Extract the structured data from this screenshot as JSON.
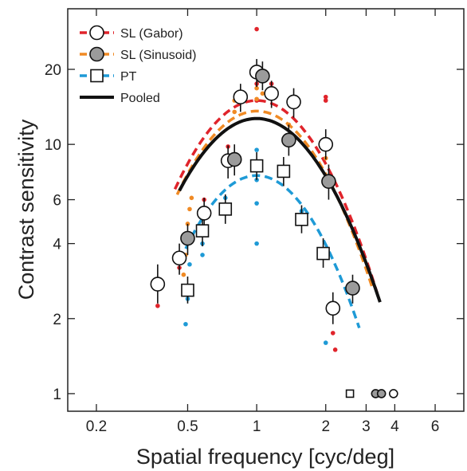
{
  "chart_data": {
    "type": "scatter",
    "xlabel": "Spatial frequency [cyc/deg]",
    "ylabel": "Contrast sensitivity",
    "x_scale": "log",
    "y_scale": "log",
    "xlim": [
      0.15,
      8
    ],
    "ylim": [
      0.85,
      35
    ],
    "x_ticks": [
      0.2,
      0.5,
      1,
      2,
      3,
      4,
      6
    ],
    "x_tick_labels": [
      "0.2",
      "0.5",
      "1",
      "2",
      "3",
      "4",
      "6"
    ],
    "y_ticks": [
      1,
      2,
      4,
      6,
      10,
      20
    ],
    "y_tick_labels": [
      "1",
      "2",
      "4",
      "6",
      "10",
      "20"
    ],
    "grid": false,
    "legend_position": "top-left",
    "legend": [
      {
        "label": "SL (Gabor)",
        "marker": "circle-open",
        "line": "dashed",
        "color": "#e0242b"
      },
      {
        "label": "SL (Sinusoid)",
        "marker": "circle-gray",
        "line": "dashed",
        "color": "#f08a24"
      },
      {
        "label": "PT",
        "marker": "square-open",
        "line": "dashed",
        "color": "#1e9ad6"
      },
      {
        "label": "Pooled",
        "marker": "none",
        "line": "solid",
        "color": "#111111"
      }
    ],
    "series": [
      {
        "name": "SL (Gabor)",
        "color": "#e0242b",
        "marker": "circle-open",
        "points": [
          {
            "x": 0.37,
            "y": 2.75,
            "lo": 2.3,
            "hi": 3.3
          },
          {
            "x": 0.46,
            "y": 3.5,
            "lo": 3.0,
            "hi": 4.0
          },
          {
            "x": 0.59,
            "y": 5.3,
            "lo": 4.5,
            "hi": 6.1
          },
          {
            "x": 0.75,
            "y": 8.6,
            "lo": 7.3,
            "hi": 9.9
          },
          {
            "x": 0.85,
            "y": 15.5,
            "lo": 13.5,
            "hi": 17.5
          },
          {
            "x": 1.0,
            "y": 19.5,
            "lo": 17.0,
            "hi": 22.0
          },
          {
            "x": 1.16,
            "y": 16.0,
            "lo": 14.0,
            "hi": 18.0
          },
          {
            "x": 1.45,
            "y": 14.8,
            "lo": 12.8,
            "hi": 16.8
          },
          {
            "x": 2.0,
            "y": 10.0,
            "lo": 8.7,
            "hi": 11.5
          },
          {
            "x": 2.15,
            "y": 2.2,
            "lo": 1.9,
            "hi": 2.55
          },
          {
            "x": 3.95,
            "y": 1.0
          }
        ],
        "raw": [
          {
            "x": 0.37,
            "y": 2.25
          },
          {
            "x": 0.46,
            "y": 3.2
          },
          {
            "x": 0.59,
            "y": 6.0
          },
          {
            "x": 0.75,
            "y": 9.8
          },
          {
            "x": 1.0,
            "y": 29.0
          },
          {
            "x": 1.0,
            "y": 15.0
          },
          {
            "x": 1.0,
            "y": 17.5
          },
          {
            "x": 1.16,
            "y": 17.5
          },
          {
            "x": 2.0,
            "y": 15.5
          },
          {
            "x": 2.0,
            "y": 15.0
          },
          {
            "x": 2.15,
            "y": 1.75
          },
          {
            "x": 2.2,
            "y": 1.5
          }
        ],
        "fit_peak_x": 1.0,
        "fit_peak_y": 15.0,
        "fit_bandwidth": 0.63,
        "fit_x_range": [
          0.44,
          3.35
        ]
      },
      {
        "name": "SL (Sinusoid)",
        "color": "#f08a24",
        "marker": "circle-gray",
        "points": [
          {
            "x": 0.5,
            "y": 4.2,
            "lo": 3.6,
            "hi": 4.8
          },
          {
            "x": 0.8,
            "y": 8.7,
            "lo": 7.5,
            "hi": 10.0
          },
          {
            "x": 1.06,
            "y": 18.8,
            "lo": 16.5,
            "hi": 21.5
          },
          {
            "x": 1.38,
            "y": 10.4,
            "lo": 9.0,
            "hi": 12.0
          },
          {
            "x": 2.06,
            "y": 7.1,
            "lo": 6.0,
            "hi": 8.3
          },
          {
            "x": 2.62,
            "y": 2.65,
            "lo": 2.3,
            "hi": 3.0
          },
          {
            "x": 3.3,
            "y": 1.0
          },
          {
            "x": 3.5,
            "y": 1.0
          }
        ],
        "raw": [
          {
            "x": 0.48,
            "y": 3.0
          },
          {
            "x": 0.49,
            "y": 3.6
          },
          {
            "x": 0.5,
            "y": 4.8
          },
          {
            "x": 0.51,
            "y": 5.5
          },
          {
            "x": 0.52,
            "y": 6.1
          },
          {
            "x": 0.8,
            "y": 15.0
          },
          {
            "x": 0.8,
            "y": 13.5
          },
          {
            "x": 1.0,
            "y": 16.8
          },
          {
            "x": 1.0,
            "y": 15.2
          },
          {
            "x": 1.06,
            "y": 16.0
          },
          {
            "x": 1.38,
            "y": 12.0
          },
          {
            "x": 2.0,
            "y": 8.8
          }
        ],
        "fit_peak_x": 1.0,
        "fit_peak_y": 13.6,
        "fit_bandwidth": 0.62,
        "fit_x_range": [
          0.45,
          3.2
        ]
      },
      {
        "name": "PT",
        "color": "#1e9ad6",
        "marker": "square-open",
        "points": [
          {
            "x": 0.5,
            "y": 2.6,
            "lo": 2.3,
            "hi": 2.95
          },
          {
            "x": 0.58,
            "y": 4.5,
            "lo": 3.9,
            "hi": 5.1
          },
          {
            "x": 0.73,
            "y": 5.5,
            "lo": 4.8,
            "hi": 6.3
          },
          {
            "x": 1.0,
            "y": 8.2,
            "lo": 7.2,
            "hi": 9.3
          },
          {
            "x": 1.31,
            "y": 7.8,
            "lo": 6.8,
            "hi": 8.9
          },
          {
            "x": 1.57,
            "y": 5.0,
            "lo": 4.4,
            "hi": 5.7
          },
          {
            "x": 1.95,
            "y": 3.65,
            "lo": 3.2,
            "hi": 4.2
          },
          {
            "x": 2.55,
            "y": 1.0
          }
        ],
        "raw": [
          {
            "x": 0.49,
            "y": 1.9
          },
          {
            "x": 0.5,
            "y": 2.4
          },
          {
            "x": 0.51,
            "y": 3.3
          },
          {
            "x": 0.58,
            "y": 4.0
          },
          {
            "x": 0.58,
            "y": 3.6
          },
          {
            "x": 0.73,
            "y": 6.1
          },
          {
            "x": 1.0,
            "y": 4.0
          },
          {
            "x": 1.0,
            "y": 5.8
          },
          {
            "x": 1.0,
            "y": 7.2
          },
          {
            "x": 1.0,
            "y": 9.5
          },
          {
            "x": 1.57,
            "y": 5.4
          },
          {
            "x": 2.0,
            "y": 1.6
          }
        ],
        "fit_peak_x": 1.0,
        "fit_peak_y": 7.5,
        "fit_bandwidth": 0.52,
        "fit_x_range": [
          0.49,
          2.8
        ]
      },
      {
        "name": "Pooled",
        "color": "#111111",
        "marker": "none",
        "points": [],
        "raw": [],
        "fit_peak_x": 1.0,
        "fit_peak_y": 12.7,
        "fit_bandwidth": 0.64,
        "fit_x_range": [
          0.46,
          3.45
        ]
      }
    ]
  }
}
